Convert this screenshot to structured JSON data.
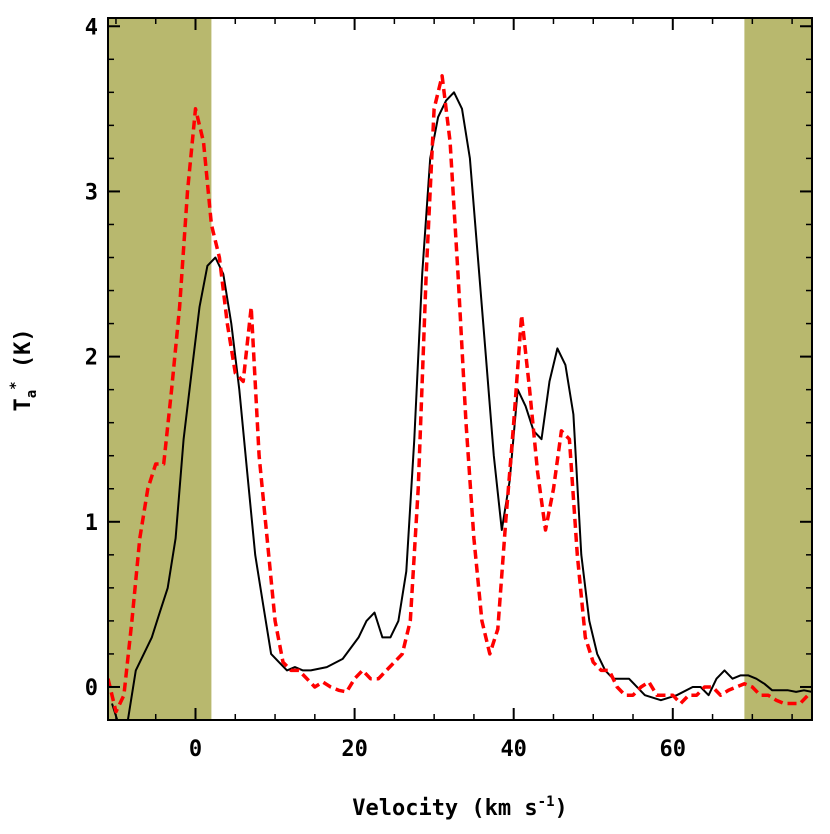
{
  "chart_data": {
    "type": "line",
    "xlabel": "Velocity (km s",
    "xlabel_sup": "-1",
    "xlabel_close": ")",
    "ylabel_main": "T",
    "ylabel_sub": "a",
    "ylabel_sup": "*",
    "ylabel_unit": " (K)",
    "xlim": [
      -11,
      77.5
    ],
    "ylim": [
      -0.2,
      4.05
    ],
    "x_ticks": [
      0,
      20,
      40,
      60
    ],
    "y_ticks": [
      0,
      1,
      2,
      3,
      4
    ],
    "x_tick_labels": [
      "0",
      "20",
      "40",
      "60"
    ],
    "y_tick_labels": [
      "0",
      "1",
      "2",
      "3",
      "4"
    ],
    "shaded_regions": [
      {
        "x0": -11,
        "x1": 2,
        "color": "#b8b86e"
      },
      {
        "x0": 69,
        "x1": 77.5,
        "color": "#b8b86e"
      }
    ],
    "series": [
      {
        "style": "solid",
        "color": "#000000",
        "x": [
          -10.5,
          -9.5,
          -8.5,
          -7.5,
          -6.5,
          -5.5,
          -4.5,
          -3.5,
          -2.5,
          -1.5,
          -0.5,
          0.5,
          1.5,
          2.5,
          3.5,
          4.5,
          5.5,
          6.5,
          7.5,
          8.5,
          9.5,
          10.5,
          11.5,
          12.5,
          13.5,
          14.5,
          16.5,
          18.5,
          20.5,
          21.5,
          22.5,
          23.5,
          24.5,
          25.5,
          26.5,
          27.5,
          28.5,
          29.5,
          30.5,
          31.5,
          32.5,
          33.5,
          34.5,
          35.5,
          36.5,
          37.5,
          38.5,
          39.5,
          40.5,
          41.5,
          42.5,
          43.5,
          44.5,
          45.5,
          46.5,
          47.5,
          48.5,
          49.5,
          50.5,
          51.5,
          52.5,
          54.5,
          56.5,
          58.5,
          60.5,
          62.5,
          63.5,
          64.5,
          65.5,
          66.5,
          67.5,
          68.5,
          69.5,
          70.5,
          71.5,
          72.5,
          73.5,
          74.5,
          75.5,
          76.5,
          77.5
        ],
        "y": [
          -0.1,
          -0.25,
          -0.2,
          0.1,
          0.2,
          0.3,
          0.45,
          0.6,
          0.9,
          1.5,
          1.9,
          2.3,
          2.55,
          2.6,
          2.5,
          2.2,
          1.8,
          1.3,
          0.8,
          0.5,
          0.2,
          0.15,
          0.1,
          0.12,
          0.1,
          0.1,
          0.12,
          0.17,
          0.3,
          0.4,
          0.45,
          0.3,
          0.3,
          0.4,
          0.7,
          1.5,
          2.5,
          3.2,
          3.45,
          3.55,
          3.6,
          3.5,
          3.2,
          2.6,
          2.0,
          1.4,
          0.95,
          1.25,
          1.8,
          1.7,
          1.55,
          1.5,
          1.85,
          2.05,
          1.95,
          1.65,
          0.8,
          0.4,
          0.2,
          0.1,
          0.05,
          0.05,
          -0.05,
          -0.08,
          -0.05,
          0.0,
          0.0,
          -0.05,
          0.05,
          0.1,
          0.05,
          0.07,
          0.07,
          0.05,
          0.02,
          -0.02,
          -0.02,
          -0.02,
          -0.03,
          -0.02,
          -0.03
        ]
      },
      {
        "style": "dashed",
        "color": "#ff0000",
        "x": [
          -11,
          -10,
          -9,
          -8,
          -7,
          -6,
          -5,
          -4,
          -3,
          -2,
          -1,
          0,
          1,
          2,
          3,
          4,
          5,
          6,
          7,
          8,
          9,
          10,
          11,
          12,
          13,
          14,
          15,
          16,
          17,
          18,
          19,
          20,
          21,
          22,
          23,
          24,
          25,
          26,
          27,
          28,
          29,
          30,
          31,
          32,
          33,
          34,
          35,
          36,
          37,
          38,
          39,
          40,
          41,
          42,
          43,
          44,
          45,
          46,
          47,
          48,
          49,
          50,
          51,
          52,
          53,
          54,
          55,
          56,
          57,
          58,
          59,
          60,
          61,
          62,
          63,
          64,
          65,
          66,
          67,
          68,
          69,
          70,
          71,
          72,
          73,
          74,
          75,
          76,
          77
        ],
        "y": [
          0.05,
          -0.15,
          -0.05,
          0.4,
          0.9,
          1.2,
          1.35,
          1.35,
          1.8,
          2.3,
          3.0,
          3.5,
          3.3,
          2.8,
          2.6,
          2.2,
          1.9,
          1.85,
          2.3,
          1.4,
          0.9,
          0.4,
          0.15,
          0.1,
          0.1,
          0.05,
          0.0,
          0.03,
          0.0,
          -0.02,
          -0.03,
          0.05,
          0.1,
          0.05,
          0.05,
          0.1,
          0.15,
          0.2,
          0.4,
          1.2,
          2.5,
          3.5,
          3.7,
          3.3,
          2.5,
          1.6,
          0.9,
          0.4,
          0.2,
          0.35,
          1.0,
          1.6,
          2.25,
          1.8,
          1.3,
          0.95,
          1.2,
          1.55,
          1.5,
          0.8,
          0.3,
          0.15,
          0.1,
          0.1,
          0.0,
          -0.05,
          -0.05,
          0.0,
          0.03,
          -0.05,
          -0.05,
          -0.05,
          -0.1,
          -0.05,
          -0.05,
          0.0,
          0.0,
          -0.05,
          -0.02,
          0.0,
          0.02,
          0.0,
          -0.05,
          -0.05,
          -0.08,
          -0.1,
          -0.1,
          -0.1,
          -0.05
        ]
      }
    ]
  }
}
